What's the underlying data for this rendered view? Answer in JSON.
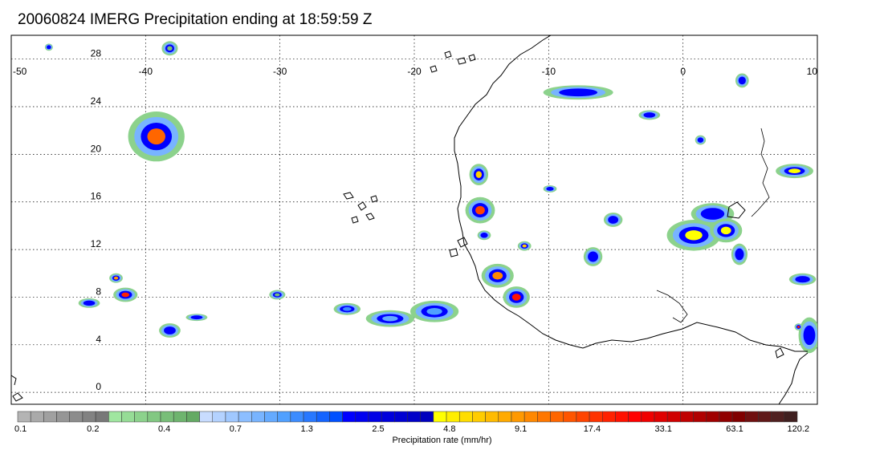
{
  "title": "20060824 IMERG Precipitation ending at 18:59:59 Z",
  "map": {
    "lon_range": [
      -50,
      10
    ],
    "lat_range": [
      -1,
      30
    ],
    "lon_ticks": [
      -50,
      -40,
      -30,
      -20,
      -10,
      0,
      10
    ],
    "lon_tick_labels": [
      "-50",
      "-40",
      "-30",
      "-20",
      "-10",
      "0",
      "10"
    ],
    "lat_ticks": [
      0,
      4,
      8,
      12,
      16,
      20,
      24,
      28
    ],
    "lat_tick_labels": [
      "0",
      "4",
      "8",
      "12",
      "16",
      "20",
      "24",
      "28"
    ],
    "grid": true,
    "coastline_color": "#000000"
  },
  "colorbar": {
    "label": "Precipitation rate (mm/hr)",
    "tick_labels": [
      "0.1",
      "0.2",
      "0.4",
      "0.7",
      "1.3",
      "2.5",
      "4.8",
      "9.1",
      "17.4",
      "33.1",
      "63.1",
      "120.2"
    ],
    "colors": [
      "#b4b4b4",
      "#aaaaaa",
      "#a0a0a0",
      "#969696",
      "#8c8c8c",
      "#828282",
      "#787878",
      "#a0e6a0",
      "#96dc96",
      "#8cd28c",
      "#82c882",
      "#78be78",
      "#6eb46e",
      "#64aa64",
      "#c8dcff",
      "#b4d2ff",
      "#a0c8ff",
      "#8cbeff",
      "#78b4ff",
      "#64aaff",
      "#50a0ff",
      "#3c8cff",
      "#2878ff",
      "#1464ff",
      "#0050ff",
      "#0000ff",
      "#0000f0",
      "#0000e6",
      "#0000dc",
      "#0000d2",
      "#0000c8",
      "#0000be",
      "#ffff00",
      "#ffee00",
      "#ffdd00",
      "#ffcc00",
      "#ffbb00",
      "#ffaa00",
      "#ff9900",
      "#ff8800",
      "#ff7700",
      "#ff6600",
      "#ff5500",
      "#ff4400",
      "#ff3300",
      "#ff2200",
      "#ff1100",
      "#ff0000",
      "#f00000",
      "#e00000",
      "#d00000",
      "#c00000",
      "#b00000",
      "#a00000",
      "#900000",
      "#800000",
      "#701010",
      "#601818",
      "#502020",
      "#402020"
    ]
  },
  "precipitation_cells": [
    {
      "lon": -39.2,
      "lat": 21.5,
      "rx": 2.1,
      "ry": 2.1,
      "peak": "#ff6600"
    },
    {
      "lon": -38.2,
      "lat": 28.9,
      "rx": 0.6,
      "ry": 0.6,
      "peak": "#78be78"
    },
    {
      "lon": -47.2,
      "lat": 29.0,
      "rx": 0.3,
      "ry": 0.3,
      "peak": "#0000ff"
    },
    {
      "lon": -44.2,
      "lat": 7.5,
      "rx": 0.8,
      "ry": 0.4,
      "peak": "#0000ff"
    },
    {
      "lon": -41.5,
      "lat": 8.2,
      "rx": 0.9,
      "ry": 0.6,
      "peak": "#ff2200"
    },
    {
      "lon": -42.2,
      "lat": 9.6,
      "rx": 0.5,
      "ry": 0.4,
      "peak": "#ff9900"
    },
    {
      "lon": -38.2,
      "lat": 5.2,
      "rx": 0.8,
      "ry": 0.6,
      "peak": "#0000ff"
    },
    {
      "lon": -36.2,
      "lat": 6.3,
      "rx": 0.8,
      "ry": 0.3,
      "peak": "#0000ff"
    },
    {
      "lon": -30.2,
      "lat": 8.2,
      "rx": 0.6,
      "ry": 0.4,
      "peak": "#78be78"
    },
    {
      "lon": -21.8,
      "lat": 6.2,
      "rx": 1.8,
      "ry": 0.7,
      "peak": "#64aaff"
    },
    {
      "lon": -18.5,
      "lat": 6.8,
      "rx": 1.8,
      "ry": 0.9,
      "peak": "#50a0ff"
    },
    {
      "lon": -15.2,
      "lat": 18.3,
      "rx": 0.7,
      "ry": 0.9,
      "peak": "#ffcc00"
    },
    {
      "lon": -15.1,
      "lat": 15.3,
      "rx": 1.1,
      "ry": 1.1,
      "peak": "#ff4400"
    },
    {
      "lon": -14.8,
      "lat": 13.2,
      "rx": 0.5,
      "ry": 0.4,
      "peak": "#0000ff"
    },
    {
      "lon": -13.8,
      "lat": 9.8,
      "rx": 1.2,
      "ry": 1.0,
      "peak": "#ff8800"
    },
    {
      "lon": -12.4,
      "lat": 8.0,
      "rx": 1.0,
      "ry": 0.9,
      "peak": "#ff1100"
    },
    {
      "lon": -11.8,
      "lat": 12.3,
      "rx": 0.5,
      "ry": 0.4,
      "peak": "#ffcc00"
    },
    {
      "lon": -7.8,
      "lat": 25.2,
      "rx": 2.6,
      "ry": 0.6,
      "peak": "#0000ff"
    },
    {
      "lon": -2.5,
      "lat": 23.3,
      "rx": 0.8,
      "ry": 0.4,
      "peak": "#0000ff"
    },
    {
      "lon": -9.9,
      "lat": 17.1,
      "rx": 0.5,
      "ry": 0.3,
      "peak": "#0000ff"
    },
    {
      "lon": -6.7,
      "lat": 11.4,
      "rx": 0.7,
      "ry": 0.8,
      "peak": "#0000ff"
    },
    {
      "lon": -5.2,
      "lat": 14.5,
      "rx": 0.7,
      "ry": 0.6,
      "peak": "#0000ff"
    },
    {
      "lon": 0.8,
      "lat": 13.2,
      "rx": 2.0,
      "ry": 1.3,
      "peak": "#ffff00"
    },
    {
      "lon": 2.2,
      "lat": 15.0,
      "rx": 1.6,
      "ry": 0.9,
      "peak": "#0000ff"
    },
    {
      "lon": 3.2,
      "lat": 13.6,
      "rx": 1.2,
      "ry": 1.0,
      "peak": "#ffff00"
    },
    {
      "lon": 4.2,
      "lat": 11.6,
      "rx": 0.6,
      "ry": 0.9,
      "peak": "#0000ff"
    },
    {
      "lon": 8.3,
      "lat": 18.6,
      "rx": 1.4,
      "ry": 0.6,
      "peak": "#ffff00"
    },
    {
      "lon": 8.9,
      "lat": 9.5,
      "rx": 1.0,
      "ry": 0.5,
      "peak": "#0000ff"
    },
    {
      "lon": 9.4,
      "lat": 4.8,
      "rx": 0.8,
      "ry": 1.5,
      "peak": "#0000ff"
    },
    {
      "lon": 8.6,
      "lat": 5.5,
      "rx": 0.3,
      "ry": 0.3,
      "peak": "#ff2200"
    },
    {
      "lon": 4.4,
      "lat": 26.2,
      "rx": 0.5,
      "ry": 0.6,
      "peak": "#0000ff"
    },
    {
      "lon": 1.3,
      "lat": 21.2,
      "rx": 0.4,
      "ry": 0.4,
      "peak": "#0000ff"
    },
    {
      "lon": -25.0,
      "lat": 7.0,
      "rx": 1.0,
      "ry": 0.5,
      "peak": "#3c8cff"
    }
  ]
}
